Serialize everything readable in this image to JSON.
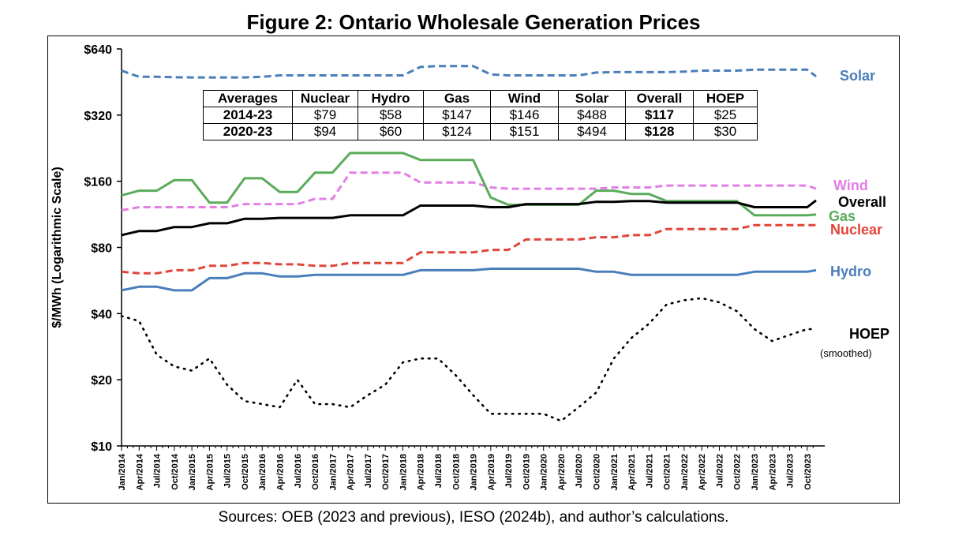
{
  "chart_data": {
    "type": "line",
    "title": "Figure 2: Ontario Wholesale Generation Prices",
    "ylabel": "$/MWh (Logarithmic Scale)",
    "xlabel": "",
    "y_scale": "log",
    "ylim": [
      10,
      640
    ],
    "y_ticks": [
      10,
      20,
      40,
      80,
      160,
      320,
      640
    ],
    "y_tick_labels": [
      "$10",
      "$20",
      "$40",
      "$80",
      "$160",
      "$320",
      "$640"
    ],
    "x_ticks": [
      "Jan/2014",
      "Apr/2014",
      "Jul/2014",
      "Oct/2014",
      "Jan/2015",
      "Apr/2015",
      "Jul/2015",
      "Oct/2015",
      "Jan/2016",
      "Apr/2016",
      "Jul/2016",
      "Oct/2016",
      "Jan/2017",
      "Apr/2017",
      "Jul/2017",
      "Oct/2017",
      "Jan/2018",
      "Apr/2018",
      "Jul/2018",
      "Oct/2018",
      "Jan/2019",
      "Apr/2019",
      "Jul/2019",
      "Oct/2019",
      "Jan/2020",
      "Apr/2020",
      "Jul/2020",
      "Oct/2020",
      "Jan/2021",
      "Apr/2021",
      "Jul/2021",
      "Oct/2021",
      "Jan/2022",
      "Apr/2022",
      "Jul/2022",
      "Oct/2022",
      "Jan/2023",
      "Apr/2023",
      "Jul/2023",
      "Oct/2023"
    ],
    "grid": false,
    "legend": "series labels at right end of lines",
    "series": [
      {
        "name": "Solar",
        "label": "Solar",
        "color": "#4a7ebb",
        "style": "dashed",
        "x": [
          0,
          1,
          2,
          3,
          4,
          5,
          6,
          7,
          8,
          9,
          10,
          11,
          12,
          13,
          14,
          15,
          16,
          17,
          18,
          19,
          20,
          21,
          22,
          23,
          24,
          25,
          26,
          27,
          28,
          29,
          30,
          31,
          32,
          33,
          34,
          35,
          36,
          37,
          38,
          39,
          39.5
        ],
        "y": [
          510,
          478,
          478,
          476,
          475,
          475,
          475,
          475,
          478,
          485,
          485,
          485,
          485,
          485,
          485,
          485,
          485,
          530,
          535,
          535,
          535,
          490,
          485,
          485,
          485,
          485,
          485,
          500,
          502,
          502,
          502,
          502,
          505,
          510,
          510,
          510,
          515,
          515,
          515,
          515,
          480
        ]
      },
      {
        "name": "Wind",
        "label": "Wind",
        "color": "#e17fe5",
        "style": "dashed",
        "x": [
          0,
          1,
          2,
          3,
          4,
          5,
          6,
          7,
          8,
          9,
          10,
          11,
          12,
          13,
          14,
          15,
          16,
          17,
          18,
          19,
          20,
          21,
          22,
          23,
          24,
          25,
          26,
          27,
          28,
          29,
          30,
          31,
          32,
          33,
          34,
          35,
          36,
          37,
          38,
          39,
          39.5
        ],
        "y": [
          118,
          122,
          122,
          122,
          122,
          122,
          122,
          126,
          126,
          126,
          126,
          133,
          133,
          175,
          175,
          175,
          175,
          158,
          158,
          158,
          158,
          150,
          148,
          148,
          148,
          148,
          148,
          148,
          150,
          150,
          150,
          153,
          153,
          153,
          153,
          153,
          153,
          153,
          153,
          153,
          148
        ]
      },
      {
        "name": "Gas",
        "label": "Gas",
        "color": "#5aab5a",
        "style": "solid",
        "x": [
          0,
          1,
          2,
          3,
          4,
          5,
          6,
          7,
          8,
          9,
          10,
          11,
          12,
          13,
          14,
          15,
          16,
          17,
          18,
          19,
          20,
          21,
          22,
          23,
          24,
          25,
          26,
          27,
          28,
          29,
          30,
          31,
          32,
          33,
          34,
          35,
          36,
          37,
          38,
          39,
          39.5
        ],
        "y": [
          138,
          145,
          145,
          162,
          162,
          128,
          128,
          165,
          165,
          143,
          143,
          175,
          175,
          215,
          215,
          215,
          215,
          200,
          200,
          200,
          200,
          135,
          125,
          125,
          125,
          125,
          125,
          145,
          145,
          140,
          140,
          130,
          130,
          130,
          130,
          130,
          112,
          112,
          112,
          112,
          113
        ]
      },
      {
        "name": "Overall",
        "label": "Overall",
        "color": "#000000",
        "style": "solid",
        "x": [
          0,
          1,
          2,
          3,
          4,
          5,
          6,
          7,
          8,
          9,
          10,
          11,
          12,
          13,
          14,
          15,
          16,
          17,
          18,
          19,
          20,
          21,
          22,
          23,
          24,
          25,
          26,
          27,
          28,
          29,
          30,
          31,
          32,
          33,
          34,
          35,
          36,
          37,
          38,
          39,
          39.5
        ],
        "y": [
          91,
          95,
          95,
          99,
          99,
          103,
          103,
          108,
          108,
          109,
          109,
          109,
          109,
          112,
          112,
          112,
          112,
          124,
          124,
          124,
          124,
          122,
          122,
          126,
          126,
          126,
          126,
          129,
          129,
          130,
          130,
          128,
          128,
          128,
          128,
          128,
          122,
          122,
          122,
          122,
          131
        ]
      },
      {
        "name": "Nuclear",
        "label": "Nuclear",
        "color": "#e0453a",
        "style": "dashed",
        "x": [
          0,
          1,
          2,
          3,
          4,
          5,
          6,
          7,
          8,
          9,
          10,
          11,
          12,
          13,
          14,
          15,
          16,
          17,
          18,
          19,
          20,
          21,
          22,
          23,
          24,
          25,
          26,
          27,
          28,
          29,
          30,
          31,
          32,
          33,
          34,
          35,
          36,
          37,
          38,
          39,
          39.5
        ],
        "y": [
          62,
          61,
          61,
          63,
          63,
          66,
          66,
          68,
          68,
          67,
          67,
          66,
          66,
          68,
          68,
          68,
          68,
          76,
          76,
          76,
          76,
          78,
          78,
          87,
          87,
          87,
          87,
          89,
          89,
          91,
          91,
          97,
          97,
          97,
          97,
          97,
          101,
          101,
          101,
          101,
          101
        ]
      },
      {
        "name": "Hydro",
        "label": "Hydro",
        "color": "#4a7ebb",
        "style": "solid",
        "x": [
          0,
          1,
          2,
          3,
          4,
          5,
          6,
          7,
          8,
          9,
          10,
          11,
          12,
          13,
          14,
          15,
          16,
          17,
          18,
          19,
          20,
          21,
          22,
          23,
          24,
          25,
          26,
          27,
          28,
          29,
          30,
          31,
          32,
          33,
          34,
          35,
          36,
          37,
          38,
          39,
          39.5
        ],
        "y": [
          51,
          53,
          53,
          51,
          51,
          58,
          58,
          61,
          61,
          59,
          59,
          60,
          60,
          60,
          60,
          60,
          60,
          63,
          63,
          63,
          63,
          64,
          64,
          64,
          64,
          64,
          64,
          62,
          62,
          60,
          60,
          60,
          60,
          60,
          60,
          60,
          62,
          62,
          62,
          62,
          63
        ]
      },
      {
        "name": "HOEP",
        "label": "HOEP",
        "sublabel": "(smoothed)",
        "color": "#000000",
        "style": "dotted",
        "x": [
          0,
          1,
          2,
          3,
          4,
          5,
          6,
          7,
          8,
          9,
          10,
          11,
          12,
          13,
          14,
          15,
          16,
          17,
          18,
          19,
          20,
          21,
          22,
          23,
          24,
          25,
          26,
          27,
          28,
          29,
          30,
          31,
          32,
          33,
          34,
          35,
          36,
          37,
          38,
          39,
          39.5
        ],
        "y": [
          39,
          37,
          26,
          23,
          22,
          25,
          19,
          16,
          15.5,
          15,
          20,
          15.5,
          15.5,
          15,
          17,
          19,
          24,
          25,
          25,
          21,
          17,
          14,
          14,
          14,
          14,
          13,
          15,
          17.5,
          25,
          31,
          36,
          44,
          46,
          47,
          45,
          41,
          34,
          30,
          32,
          34,
          34
        ]
      }
    ]
  },
  "averages_table": {
    "headers": [
      "Averages",
      "Nuclear",
      "Hydro",
      "Gas",
      "Wind",
      "Solar",
      "Overall",
      "HOEP"
    ],
    "rows": [
      [
        "2014-23",
        "$79",
        "$58",
        "$147",
        "$146",
        "$488",
        "$117",
        "$25"
      ],
      [
        "2020-23",
        "$94",
        "$60",
        "$124",
        "$151",
        "$494",
        "$128",
        "$30"
      ]
    ]
  },
  "source": "Sources: OEB (2023 and previous), IESO (2024b), and author’s calculations."
}
